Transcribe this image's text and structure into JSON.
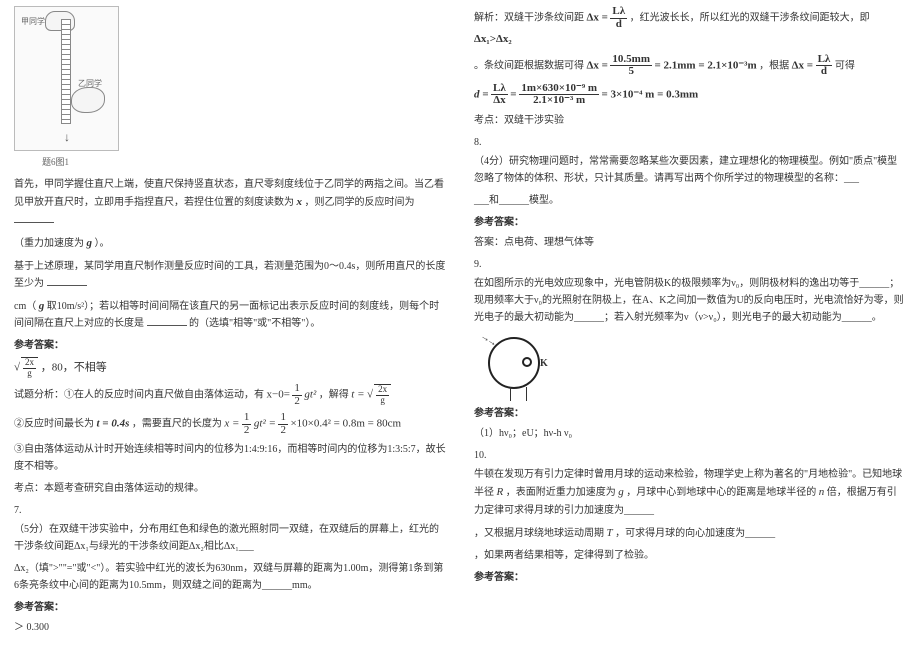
{
  "left": {
    "figure": {
      "labelTop": "甲同学",
      "labelBottom": "乙同学",
      "caption": "题6图1"
    },
    "q6": {
      "para1_a": "首先，甲同学握住直尺上端，使直尺保持竖直状态，直尺零刻度线位于乙同学的两指之间。当乙看见甲放开直尺时，立即用手指捏直尺，若捏住位置的刻度读数为",
      "xvar": "x",
      "para1_b": "，则乙同学的反应时间为",
      "para2": "（重力加速度为",
      "gvar": "g",
      "para2_b": "）。",
      "para3_a": "基于上述原理，某同学用直尺制作测量反应时间的工具，若测量范围为0～0.4s，则所用直尺的长度至少为",
      "para3_b": "cm（",
      "para3_c": "取10m/s²）；若以相等时间间隔在该直尺的另一面标记出表示反应时间的刻度线，则每个时间间隔在直尺上对应的长度是",
      "para3_d": "的（选填\"相等\"或\"不相等\"）。",
      "ans_head": "参考答案：",
      "ans1_a": "，80，不相等",
      "analysis_head": "试题分析：①在人的反应时间内直尺做自由落体运动，有",
      "eq1_lhs": "x−0=",
      "eq1_half": "1",
      "eq1_two": "2",
      "eq1_gt2": "gt²",
      "eq1_mid": "，解得",
      "eq1_t": "t =",
      "line2_a": "②反应时间最长为",
      "line2_t04": "t = 0.4s",
      "line2_b": "，需要直尺的长度为",
      "line2_eq": "×10×0.4² = 0.8m = 80cm",
      "line3": "③自由落体运动从计时开始连续相等时间内的位移为1:4:9:16，而相等时间内的位移为1:3:5:7，故长度不相等。",
      "point": "考点：本题考查研究自由落体运动的规律。"
    },
    "q7": {
      "num": "7.",
      "intro": "（5分）在双缝干涉实验中，分布用红色和绿色的激光照射同一双缝，在双缝后的屏幕上，红光的干涉条纹间距Δx₁与绿光的干涉条纹间距Δx₂相比Δx₁___",
      "fill": "Δx₂（填\">\"\"=\"或\"<\"）。若实验中红光的波长为630nm，双缝与屏幕的距离为1.00m，测得第1条到第6条亮条纹中心间的距离为10.5mm，则双缝之间的距离为______mm。",
      "ans_head": "参考答案：",
      "ans": "＞    0.300"
    }
  },
  "right": {
    "q7sol": {
      "l1_a": "解析：双缝干涉条纹间距",
      "l1_b": "，红光波长长，所以红光的双缝干涉条纹间距较大，即",
      "l1_c": "Δx₁>Δx₂",
      "l2_a": "。条纹间距根据数据可得",
      "l2_calc": " = 2.1mm = 2.1×10⁻³m",
      "l2_b": "，根据",
      "l2_c": " 可得",
      "l3_lhs": "d =",
      "l3_calc": " = 3×10⁻⁴ m = 0.3mm",
      "point": "考点：双缝干涉实验"
    },
    "q8": {
      "num": "8.",
      "body_a": "（4分）研究物理问题时，常常需要忽略某些次要因素，建立理想化的物理模型。例如\"质点\"模型忽略了物体的体积、形状，只计其质量。请再写出两个你所学过的物理模型的名称：___",
      "body_b": "___和______模型。",
      "ans_head": "参考答案：",
      "ans": "答案：点电荷、理想气体等"
    },
    "q9": {
      "num": "9.",
      "body": "在如图所示的光电效应现象中，光电管阴极K的极限频率为ν₀，则阴极材料的逸出功等于______；现用频率大于ν₀的光照射在阴极上，在A、K之间加一数值为U的反向电压时，光电流恰好为零，则光电子的最大初动能为______；若入射光频率为ν（ν>ν₀），则光电子的最大初动能为______。",
      "ans_head": "参考答案：",
      "ans": "（1）hν₀；eU；hν-h ν₀"
    },
    "q10": {
      "num": "10.",
      "body_a": "牛顿在发现万有引力定律时曾用月球的运动来检验，物理学史上称为著名的\"月地检验\"。已知地球半径",
      "body_b": "，表面附近重力加速度为",
      "body_c": "，月球中心到地球中心的距离是地球半径的",
      "body_d": "倍，根据万有引力定律可求得月球的引力加速度为______",
      "body_e": "，又根据月球绕地球运动周期",
      "body_f": "，可求得月球的向心加速度为______",
      "body_g": "，如果两者结果相等，定律得到了检验。",
      "ans_head": "参考答案："
    },
    "formulas": {
      "dx_eq_Ll_d": {
        "dx": "Δx =",
        "num": "Lλ",
        "den": "d"
      },
      "dx_val": {
        "dx": "Δx =",
        "num": "10.5mm",
        "den": "5"
      },
      "d_eq": {
        "num": "Lλ",
        "den": "Δx"
      },
      "d_val": {
        "num": "1m×630×10⁻⁹ m",
        "den": "2.1×10⁻³ m"
      },
      "x_half_gt2": {
        "x": "x =",
        "num1": "1",
        "den1": "2",
        "gt2": "gt² =",
        "num2": "1",
        "den2": "2"
      },
      "sqrt2xg": {
        "num": "2x",
        "den": "g"
      }
    }
  }
}
